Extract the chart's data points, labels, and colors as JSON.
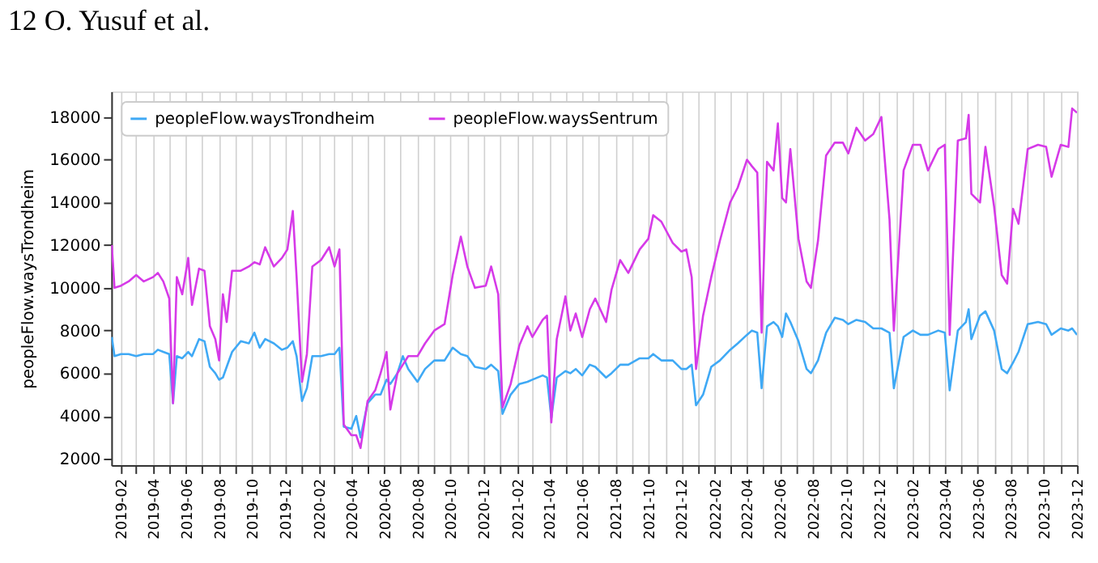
{
  "chart_data": {
    "type": "line",
    "ylabel": "peopleFlow.waysTrondheim",
    "annotations": [
      "12      O. Yusuf et al."
    ],
    "x": [
      "2019-01-15",
      "2019-01-20",
      "2019-02-01",
      "2019-02-15",
      "2019-03-01",
      "2019-03-15",
      "2019-04-01",
      "2019-04-10",
      "2019-04-20",
      "2019-05-01",
      "2019-05-08",
      "2019-05-15",
      "2019-05-25",
      "2019-06-05",
      "2019-06-12",
      "2019-06-25",
      "2019-07-05",
      "2019-07-15",
      "2019-07-25",
      "2019-08-01",
      "2019-08-08",
      "2019-08-15",
      "2019-08-25",
      "2019-09-10",
      "2019-09-25",
      "2019-10-05",
      "2019-10-15",
      "2019-10-25",
      "2019-11-10",
      "2019-11-25",
      "2019-12-05",
      "2019-12-15",
      "2019-12-22",
      "2020-01-01",
      "2020-01-10",
      "2020-01-20",
      "2020-02-05",
      "2020-02-20",
      "2020-03-01",
      "2020-03-10",
      "2020-03-18",
      "2020-04-01",
      "2020-04-10",
      "2020-04-18",
      "2020-05-01",
      "2020-05-15",
      "2020-05-25",
      "2020-06-05",
      "2020-06-12",
      "2020-06-25",
      "2020-07-05",
      "2020-07-15",
      "2020-08-01",
      "2020-08-15",
      "2020-09-01",
      "2020-09-20",
      "2020-10-05",
      "2020-10-20",
      "2020-11-01",
      "2020-11-15",
      "2020-12-05",
      "2020-12-15",
      "2020-12-28",
      "2021-01-05",
      "2021-01-20",
      "2021-02-05",
      "2021-02-20",
      "2021-03-01",
      "2021-03-20",
      "2021-03-28",
      "2021-04-05",
      "2021-04-15",
      "2021-05-01",
      "2021-05-10",
      "2021-05-20",
      "2021-06-01",
      "2021-06-15",
      "2021-06-25",
      "2021-07-15",
      "2021-07-25",
      "2021-08-10",
      "2021-08-25",
      "2021-09-15",
      "2021-10-01",
      "2021-10-10",
      "2021-10-25",
      "2021-11-15",
      "2021-12-01",
      "2021-12-10",
      "2021-12-20",
      "2021-12-28",
      "2022-01-10",
      "2022-01-25",
      "2022-02-10",
      "2022-03-01",
      "2022-03-15",
      "2022-04-01",
      "2022-04-10",
      "2022-04-20",
      "2022-04-28",
      "2022-05-08",
      "2022-05-20",
      "2022-05-28",
      "2022-06-05",
      "2022-06-12",
      "2022-06-20",
      "2022-07-05",
      "2022-07-20",
      "2022-07-28",
      "2022-08-10",
      "2022-08-25",
      "2022-09-10",
      "2022-09-25",
      "2022-10-05",
      "2022-10-20",
      "2022-11-05",
      "2022-11-20",
      "2022-12-05",
      "2022-12-20",
      "2022-12-28",
      "2023-01-15",
      "2023-02-01",
      "2023-02-15",
      "2023-03-01",
      "2023-03-20",
      "2023-04-01",
      "2023-04-10",
      "2023-04-25",
      "2023-05-10",
      "2023-05-15",
      "2023-05-20",
      "2023-06-05",
      "2023-06-15",
      "2023-07-01",
      "2023-07-15",
      "2023-07-25",
      "2023-08-05",
      "2023-08-15",
      "2023-09-01",
      "2023-09-20",
      "2023-10-05",
      "2023-10-15",
      "2023-11-01",
      "2023-11-15",
      "2023-11-22",
      "2023-12-01"
    ],
    "series": [
      {
        "name": "peopleFlow.waysTrondheim",
        "color": "#3fa9f5",
        "values": [
          7700,
          6800,
          6900,
          6900,
          6800,
          6900,
          6900,
          7100,
          7000,
          6900,
          4600,
          6800,
          6700,
          7000,
          6800,
          7600,
          7500,
          6300,
          6000,
          5700,
          5800,
          6300,
          7000,
          7500,
          7400,
          7900,
          7200,
          7600,
          7400,
          7100,
          7200,
          7500,
          6800,
          4700,
          5300,
          6800,
          6800,
          6900,
          6900,
          7200,
          3500,
          3400,
          4000,
          3000,
          4600,
          5000,
          5000,
          5700,
          5500,
          6000,
          6800,
          6200,
          5600,
          6200,
          6600,
          6600,
          7200,
          6900,
          6800,
          6300,
          6200,
          6400,
          6100,
          4100,
          5000,
          5500,
          5600,
          5700,
          5900,
          5800,
          3900,
          5800,
          6100,
          6000,
          6200,
          5900,
          6400,
          6300,
          5800,
          6000,
          6400,
          6400,
          6700,
          6700,
          6900,
          6600,
          6600,
          6200,
          6200,
          6400,
          4500,
          5000,
          6300,
          6600,
          7100,
          7400,
          7800,
          8000,
          7900,
          5300,
          8200,
          8400,
          8200,
          7700,
          8800,
          8400,
          7500,
          6200,
          6000,
          6600,
          7900,
          8600,
          8500,
          8300,
          8500,
          8400,
          8100,
          8100,
          7900,
          5300,
          7700,
          8000,
          7800,
          7800,
          8000,
          7900,
          5200,
          8000,
          8400,
          9000,
          7600,
          8700,
          8900,
          8000,
          6200,
          6000,
          6500,
          7000,
          8300,
          8400,
          8300,
          7800,
          8100,
          8000,
          8100,
          7800
        ]
      },
      {
        "name": "peopleFlow.waysSentrum",
        "color": "#d63ae8",
        "values": [
          12000,
          10000,
          10100,
          10300,
          10600,
          10300,
          10500,
          10700,
          10300,
          9500,
          4600,
          10500,
          9700,
          11400,
          9200,
          10900,
          10800,
          8200,
          7600,
          6600,
          9700,
          8400,
          10800,
          10800,
          11000,
          11200,
          11100,
          11900,
          11000,
          11400,
          11800,
          13600,
          10500,
          5600,
          6900,
          11000,
          11300,
          11900,
          11000,
          11800,
          3600,
          3100,
          3100,
          2500,
          4700,
          5200,
          6000,
          7000,
          4300,
          6000,
          6400,
          6800,
          6800,
          7400,
          8000,
          8300,
          10600,
          12400,
          11000,
          10000,
          10100,
          11000,
          9700,
          4400,
          5500,
          7300,
          8200,
          7700,
          8500,
          8700,
          3700,
          7600,
          9600,
          8000,
          8800,
          7700,
          9000,
          9500,
          8400,
          9900,
          11300,
          10700,
          11800,
          12300,
          13400,
          13100,
          12100,
          11700,
          11800,
          10500,
          6200,
          8700,
          10500,
          12200,
          14000,
          14700,
          16000,
          15700,
          15400,
          7900,
          15900,
          15500,
          17700,
          14200,
          14000,
          16500,
          12300,
          10300,
          10000,
          12200,
          16200,
          16800,
          16800,
          16300,
          17500,
          16900,
          17200,
          18000,
          13200,
          8000,
          15500,
          16700,
          16700,
          15500,
          16500,
          16700,
          7800,
          16900,
          17000,
          18100,
          14400,
          14000,
          16600,
          13800,
          10600,
          10200,
          13700,
          13000,
          16500,
          16700,
          16600,
          15200,
          16700,
          16600,
          18400,
          18200
        ]
      }
    ],
    "xlim": [
      "2019-01-14",
      "2023-12-01"
    ],
    "xticks": [
      {
        "value": "2019-02",
        "label": "2019-02"
      },
      {
        "value": "2019-03",
        "label": null
      },
      {
        "value": "2019-04",
        "label": "2019-04"
      },
      {
        "value": "2019-05",
        "label": null
      },
      {
        "value": "2019-06",
        "label": "2019-06"
      },
      {
        "value": "2019-07",
        "label": null
      },
      {
        "value": "2019-08",
        "label": "2019-08"
      },
      {
        "value": "2019-09",
        "label": null
      },
      {
        "value": "2019-10",
        "label": "2019-10"
      },
      {
        "value": "2019-11",
        "label": null
      },
      {
        "value": "2019-12",
        "label": "2019-12"
      },
      {
        "value": "2020-01",
        "label": null
      },
      {
        "value": "2020-02",
        "label": "2020-02"
      },
      {
        "value": "2020-03",
        "label": null
      },
      {
        "value": "2020-04",
        "label": "2020-04"
      },
      {
        "value": "2020-05",
        "label": null
      },
      {
        "value": "2020-06",
        "label": "2020-06"
      },
      {
        "value": "2020-07",
        "label": null
      },
      {
        "value": "2020-08",
        "label": "2020-08"
      },
      {
        "value": "2020-09",
        "label": null
      },
      {
        "value": "2020-10",
        "label": "2020-10"
      },
      {
        "value": "2020-11",
        "label": null
      },
      {
        "value": "2020-12",
        "label": "2020-12"
      },
      {
        "value": "2021-01",
        "label": null
      },
      {
        "value": "2021-02",
        "label": "2021-02"
      },
      {
        "value": "2021-03",
        "label": null
      },
      {
        "value": "2021-04",
        "label": "2021-04"
      },
      {
        "value": "2021-05",
        "label": null
      },
      {
        "value": "2021-06",
        "label": "2021-06"
      },
      {
        "value": "2021-07",
        "label": null
      },
      {
        "value": "2021-08",
        "label": "2021-08"
      },
      {
        "value": "2021-09",
        "label": null
      },
      {
        "value": "2021-10",
        "label": "2021-10"
      },
      {
        "value": "2021-11",
        "label": null
      },
      {
        "value": "2021-12",
        "label": "2021-12"
      },
      {
        "value": "2022-01",
        "label": null
      },
      {
        "value": "2022-02",
        "label": "2022-02"
      },
      {
        "value": "2022-03",
        "label": null
      },
      {
        "value": "2022-04",
        "label": "2022-04"
      },
      {
        "value": "2022-05",
        "label": null
      },
      {
        "value": "2022-06",
        "label": "2022-06"
      },
      {
        "value": "2022-07",
        "label": null
      },
      {
        "value": "2022-08",
        "label": "2022-08"
      },
      {
        "value": "2022-09",
        "label": null
      },
      {
        "value": "2022-10",
        "label": "2022-10"
      },
      {
        "value": "2022-11",
        "label": null
      },
      {
        "value": "2022-12",
        "label": "2022-12"
      },
      {
        "value": "2023-01",
        "label": null
      },
      {
        "value": "2023-02",
        "label": "2023-02"
      },
      {
        "value": "2023-03",
        "label": null
      },
      {
        "value": "2023-04",
        "label": "2023-04"
      },
      {
        "value": "2023-05",
        "label": null
      },
      {
        "value": "2023-06",
        "label": "2023-06"
      },
      {
        "value": "2023-07",
        "label": null
      },
      {
        "value": "2023-08",
        "label": "2023-08"
      },
      {
        "value": "2023-09",
        "label": null
      },
      {
        "value": "2023-10",
        "label": "2023-10"
      },
      {
        "value": "2023-11",
        "label": null
      },
      {
        "value": "2023-12",
        "label": "2023-12"
      }
    ],
    "ylim": [
      1700,
      19200
    ],
    "yticks": [
      2000,
      4000,
      6000,
      8000,
      10000,
      12000,
      14000,
      16000,
      18000
    ],
    "grid": "x",
    "legend": "top left",
    "marker": "none",
    "line_style": "solid"
  }
}
